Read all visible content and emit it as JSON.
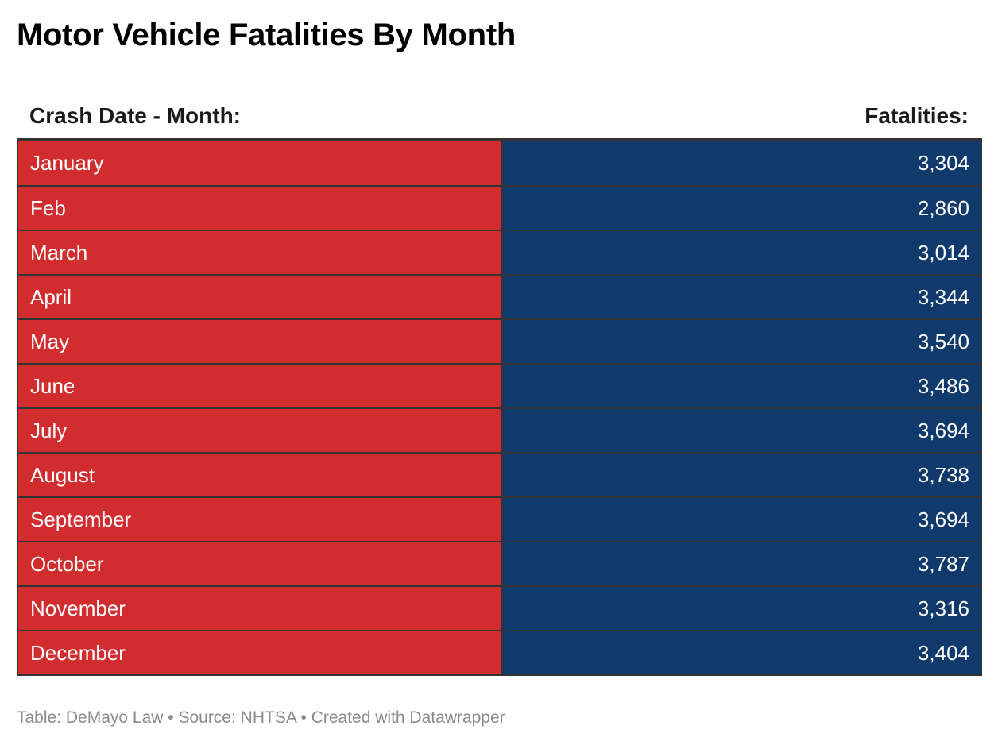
{
  "title": "Motor Vehicle Fatalities By Month",
  "colors": {
    "month_bg": "#d12d2f",
    "value_bg": "#0f3a6b"
  },
  "chart_data": {
    "type": "table",
    "columns": [
      "Crash Date - Month:",
      "Fatalities:"
    ],
    "rows": [
      [
        "January",
        "3,304"
      ],
      [
        "Feb",
        "2,860"
      ],
      [
        "March",
        "3,014"
      ],
      [
        "April",
        "3,344"
      ],
      [
        "May",
        "3,540"
      ],
      [
        "June",
        "3,486"
      ],
      [
        "July",
        "3,694"
      ],
      [
        "August",
        "3,738"
      ],
      [
        "September",
        "3,694"
      ],
      [
        "October",
        "3,787"
      ],
      [
        "November",
        "3,316"
      ],
      [
        "December",
        "3,404"
      ]
    ]
  },
  "footer": "Table: DeMayo Law • Source: NHTSA • Created with Datawrapper"
}
